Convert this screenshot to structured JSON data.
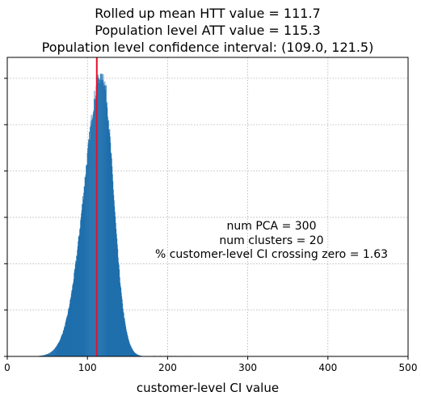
{
  "chart_data": {
    "type": "bar",
    "subtype": "histogram",
    "title_lines": [
      "Rolled up mean HTT value = 111.7",
      "Population level ATT value = 115.3",
      "Population level confidence interval: (109.0, 121.5)"
    ],
    "xlabel": "customer-level CI value",
    "ylabel": "",
    "xlim": [
      0,
      500
    ],
    "ylim": [
      0,
      1
    ],
    "x_ticks": [
      0,
      100,
      200,
      300,
      400,
      500
    ],
    "y_tick_values": [
      0,
      0.155,
      0.31,
      0.465,
      0.62,
      0.775,
      0.93
    ],
    "y_tick_labels_visible": false,
    "grid": true,
    "bar_color": "#1f6fad",
    "reference_line": {
      "x": 111.7,
      "color": "#e8112d",
      "label": "Rolled up mean HTT value"
    },
    "distribution": {
      "description_values": {
        "peak_x": 118,
        "peak_relative_height": 1.0,
        "left_sd": 22,
        "right_sd": 14,
        "min_x": 0,
        "max_x": 230
      }
    },
    "annotation_lines": [
      "num PCA = 300",
      "num clusters = 20",
      "% customer-level CI crossing zero = 1.63"
    ]
  }
}
